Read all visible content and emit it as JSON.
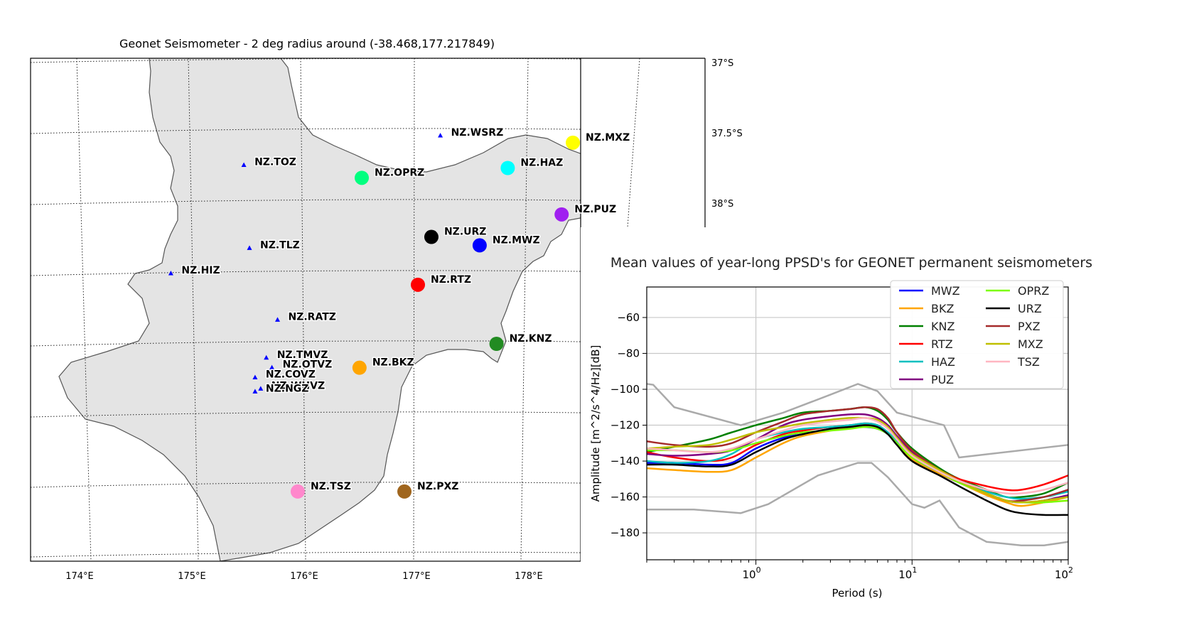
{
  "chart_data": [
    {
      "type": "scatter",
      "title": "Geonet Seismometer - 2 deg radius around (-38.468,177.217849)",
      "x_ticks": [
        174,
        175,
        176,
        177,
        178
      ],
      "x_tick_labels": [
        "174°E",
        "175°E",
        "176°E",
        "177°E",
        "178°E"
      ],
      "y_ticks": [
        -37,
        -37.5,
        -38
      ],
      "y_tick_labels": [
        "37°S",
        "37.5°S",
        "38°S"
      ],
      "grid": true,
      "stations": [
        {
          "label": "NZ.WSRZ",
          "lon": 177.2,
          "lat": -37.52,
          "marker": "triangle",
          "color": "#0000ff"
        },
        {
          "label": "NZ.MXZ",
          "lon": 178.38,
          "lat": -37.57,
          "marker": "circle",
          "color": "#ffff00"
        },
        {
          "label": "NZ.HAZ",
          "lon": 177.8,
          "lat": -37.75,
          "marker": "circle",
          "color": "#00ffff"
        },
        {
          "label": "NZ.TOZ",
          "lon": 175.45,
          "lat": -37.73,
          "marker": "triangle",
          "color": "#0000ff"
        },
        {
          "label": "NZ.OPRZ",
          "lon": 176.5,
          "lat": -37.82,
          "marker": "circle",
          "color": "#00ff7f"
        },
        {
          "label": "NZ.PUZ",
          "lon": 178.28,
          "lat": -38.08,
          "marker": "circle",
          "color": "#a020f0"
        },
        {
          "label": "NZ.URZ",
          "lon": 177.12,
          "lat": -38.24,
          "marker": "circle",
          "color": "#000000"
        },
        {
          "label": "NZ.MWZ",
          "lon": 177.55,
          "lat": -38.3,
          "marker": "circle",
          "color": "#0000ff"
        },
        {
          "label": "NZ.TLZ",
          "lon": 175.5,
          "lat": -38.32,
          "marker": "triangle",
          "color": "#0000ff"
        },
        {
          "label": "NZ.HIZ",
          "lon": 174.8,
          "lat": -38.5,
          "marker": "triangle",
          "color": "#0000ff"
        },
        {
          "label": "NZ.RTZ",
          "lon": 177.0,
          "lat": -38.58,
          "marker": "circle",
          "color": "#ff0000"
        },
        {
          "label": "NZ.RATZ",
          "lon": 175.75,
          "lat": -38.83,
          "marker": "triangle",
          "color": "#0000ff"
        },
        {
          "label": "NZ.KNZ",
          "lon": 177.7,
          "lat": -39.0,
          "marker": "circle",
          "color": "#228b22"
        },
        {
          "label": "NZ.TMVZ",
          "lon": 175.65,
          "lat": -39.1,
          "marker": "triangle",
          "color": "#0000ff"
        },
        {
          "label": "NZ.OTVZ",
          "lon": 175.7,
          "lat": -39.17,
          "marker": "triangle",
          "color": "#0000ff"
        },
        {
          "label": "NZ.BKZ",
          "lon": 176.48,
          "lat": -39.17,
          "marker": "circle",
          "color": "#ffa500"
        },
        {
          "label": "NZ.COVZ",
          "lon": 175.55,
          "lat": -39.24,
          "marker": "triangle",
          "color": "#0000ff"
        },
        {
          "label": "NZ.WHVZ",
          "lon": 175.6,
          "lat": -39.32,
          "marker": "triangle",
          "color": "#0000ff"
        },
        {
          "label": "NZ.NGZ",
          "lon": 175.55,
          "lat": -39.34,
          "marker": "triangle",
          "color": "#0000ff"
        },
        {
          "label": "NZ.TSZ",
          "lon": 175.93,
          "lat": -40.05,
          "marker": "circle",
          "color": "#ff88cc"
        },
        {
          "label": "NZ.PXZ",
          "lon": 176.88,
          "lat": -40.05,
          "marker": "circle",
          "color": "#a0661e"
        }
      ]
    },
    {
      "type": "line",
      "title": "Mean values of year-long PPSD's for GEONET permanent seismometers",
      "xlabel": "Period (s)",
      "ylabel": "Amplitude [m^2/s^4/Hz][dB]",
      "x_scale": "log",
      "xlim": [
        0.2,
        100
      ],
      "ylim": [
        -195,
        -43
      ],
      "y_ticks": [
        -180,
        -160,
        -140,
        -120,
        -100,
        -80,
        -60
      ],
      "x_ticks": [
        1,
        10,
        100
      ],
      "x_tick_base": "10",
      "x_tick_exponents": [
        "0",
        "1",
        "2"
      ],
      "grid": true,
      "legend": "top-right, two columns",
      "x": [
        0.2,
        0.3,
        0.5,
        0.7,
        1,
        1.5,
        2,
        3,
        4,
        5,
        6,
        7,
        8,
        10,
        15,
        20,
        30,
        40,
        50,
        70,
        100
      ],
      "series": [
        {
          "name": "MWZ",
          "color": "#0000ff",
          "values": [
            -141,
            -141,
            -142,
            -141,
            -133,
            -127,
            -125,
            -122,
            -121,
            -121,
            -122,
            -125,
            -130,
            -139,
            -147,
            -152,
            -158,
            -162,
            -163,
            -162,
            -159
          ]
        },
        {
          "name": "BKZ",
          "color": "#ffa500",
          "values": [
            -144,
            -145,
            -146,
            -145,
            -138,
            -130,
            -126,
            -123,
            -121,
            -120,
            -121,
            -125,
            -130,
            -139,
            -147,
            -152,
            -159,
            -163,
            -165,
            -163,
            -160
          ]
        },
        {
          "name": "KNZ",
          "color": "#008000",
          "values": [
            -135,
            -132,
            -128,
            -124,
            -120,
            -116,
            -113,
            -112,
            -111,
            -110,
            -112,
            -117,
            -124,
            -133,
            -144,
            -150,
            -156,
            -160,
            -160,
            -158,
            -152
          ]
        },
        {
          "name": "RTZ",
          "color": "#ff0000",
          "values": [
            -135,
            -138,
            -140,
            -138,
            -131,
            -125,
            -123,
            -121,
            -120,
            -119,
            -120,
            -124,
            -129,
            -137,
            -145,
            -150,
            -154,
            -156,
            -156,
            -153,
            -148
          ]
        },
        {
          "name": "HAZ",
          "color": "#00bfbf",
          "values": [
            -140,
            -141,
            -140,
            -136,
            -128,
            -124,
            -122,
            -121,
            -120,
            -119,
            -120,
            -124,
            -129,
            -138,
            -146,
            -151,
            -157,
            -160,
            -161,
            -160,
            -157
          ]
        },
        {
          "name": "PUZ",
          "color": "#800080",
          "values": [
            -136,
            -137,
            -136,
            -134,
            -128,
            -120,
            -117,
            -115,
            -114,
            -114,
            -116,
            -120,
            -126,
            -135,
            -145,
            -151,
            -158,
            -162,
            -163,
            -162,
            -159
          ]
        },
        {
          "name": "OPRZ",
          "color": "#7cfc00",
          "values": [
            -134,
            -134,
            -135,
            -134,
            -130,
            -126,
            -124,
            -123,
            -122,
            -121,
            -122,
            -125,
            -130,
            -138,
            -146,
            -152,
            -158,
            -162,
            -163,
            -163,
            -162
          ]
        },
        {
          "name": "URZ",
          "color": "#000000",
          "values": [
            -142,
            -142,
            -143,
            -142,
            -135,
            -128,
            -125,
            -122,
            -121,
            -120,
            -121,
            -125,
            -131,
            -140,
            -148,
            -154,
            -162,
            -167,
            -169,
            -170,
            -170
          ]
        },
        {
          "name": "PXZ",
          "color": "#a52a2a",
          "values": [
            -129,
            -131,
            -132,
            -130,
            -124,
            -118,
            -114,
            -112,
            -111,
            -110,
            -111,
            -116,
            -124,
            -134,
            -145,
            -151,
            -158,
            -162,
            -162,
            -160,
            -156
          ]
        },
        {
          "name": "MXZ",
          "color": "#bfbf00",
          "values": [
            -133,
            -132,
            -131,
            -128,
            -124,
            -121,
            -119,
            -117,
            -116,
            -116,
            -117,
            -121,
            -127,
            -136,
            -145,
            -151,
            -158,
            -162,
            -163,
            -162,
            -160
          ]
        },
        {
          "name": "TSZ",
          "color": "#ffb6c1",
          "values": [
            -133,
            -134,
            -135,
            -133,
            -128,
            -123,
            -120,
            -118,
            -117,
            -116,
            -118,
            -122,
            -128,
            -137,
            -146,
            -151,
            -156,
            -158,
            -158,
            -156,
            -152
          ]
        }
      ],
      "noise_model_lines": [
        {
          "x": [
            0.2,
            0.22,
            0.3,
            0.8,
            1.5,
            3,
            4.5,
            6,
            8,
            16,
            20,
            100
          ],
          "values": [
            -97,
            -97.5,
            -110,
            -120,
            -113,
            -103,
            -97,
            -101,
            -113,
            -120,
            -138,
            -131
          ],
          "color": "#aaaaaa"
        },
        {
          "x": [
            0.2,
            0.4,
            0.8,
            1.2,
            2.5,
            4.5,
            5.5,
            7,
            10,
            12,
            15,
            20,
            30,
            50,
            70,
            100
          ],
          "values": [
            -167,
            -167,
            -169,
            -164,
            -148,
            -141,
            -141,
            -149,
            -164,
            -166,
            -162,
            -177,
            -185,
            -187,
            -187,
            -185
          ],
          "color": "#aaaaaa"
        }
      ]
    }
  ]
}
